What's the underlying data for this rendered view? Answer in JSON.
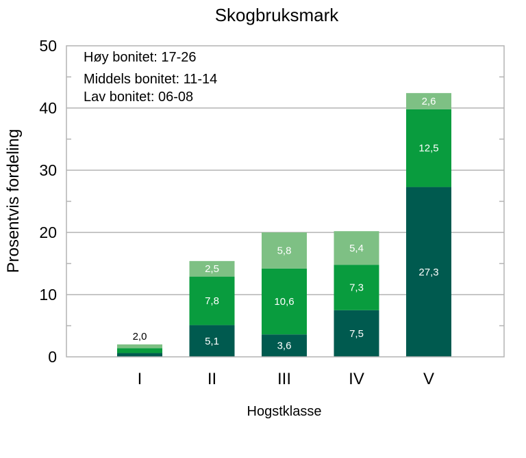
{
  "chart_data": {
    "type": "bar",
    "stacked": true,
    "title": "Skogbruksmark",
    "xlabel": "Hogstklasse",
    "ylabel": "Prosentvis fordeling",
    "ylim": [
      0,
      50
    ],
    "yticks": [
      "0",
      "10",
      "20",
      "30",
      "40",
      "50"
    ],
    "grid": true,
    "categories": [
      "I",
      "II",
      "III",
      "IV",
      "V"
    ],
    "series": [
      {
        "key": "lav",
        "color": "#005a4f",
        "values": [
          0.6,
          5.1,
          3.6,
          7.5,
          27.3
        ],
        "labels": [
          "",
          "5,1",
          "3,6",
          "7,5",
          "27,3"
        ]
      },
      {
        "key": "middels",
        "color": "#099c3e",
        "values": [
          0.8,
          7.8,
          10.6,
          7.3,
          12.5
        ],
        "labels": [
          "",
          "7,8",
          "10,6",
          "7,3",
          "12,5"
        ]
      },
      {
        "key": "hoy",
        "color": "#7ec084",
        "values": [
          0.6,
          2.5,
          5.8,
          5.4,
          2.6
        ],
        "labels": [
          "",
          "2,5",
          "5,8",
          "5,4",
          "2,6"
        ]
      }
    ],
    "total_labels": [
      "2,0",
      "",
      "",
      "",
      ""
    ],
    "legend_text": [
      "Høy bonitet: 17-26",
      "Middels bonitet: 11-14",
      "Lav bonitet: 06-08"
    ],
    "legend_position": "top-left"
  }
}
